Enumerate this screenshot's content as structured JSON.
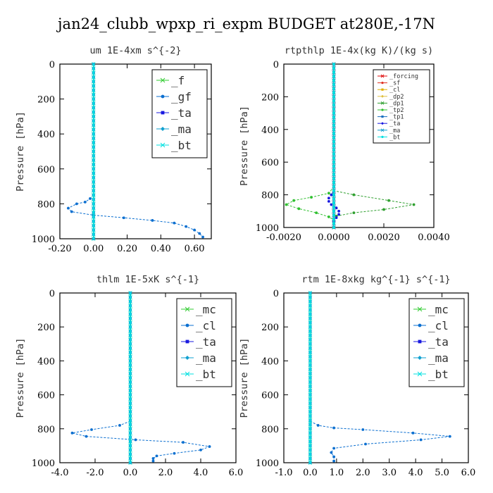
{
  "title": "jan24_clubb_wpxp_ri_expm  BUDGET at280E,-17N",
  "colors": {
    "f": "#33cc33",
    "gf": "#0b6fd0",
    "ta": "#1818e0",
    "ma": "#10a0d0",
    "bt": "#00e0e0",
    "forcing": "#e01010",
    "sf": "#e03020",
    "cl": "#e0b000",
    "dp2": "#e0c040",
    "dp1": "#30a030",
    "tp2": "#30c030",
    "tp1": "#1a70c0",
    "mc": "#33cc33"
  },
  "chart_data": [
    {
      "type": "line",
      "title": "um  1E-4xm s^{-2}",
      "ylabel": "Pressure [hPa]",
      "xlim": [
        -0.2,
        0.7
      ],
      "ylim": [
        1000,
        0
      ],
      "xticks": [
        -0.2,
        0.0,
        0.2,
        0.4,
        0.6
      ],
      "xtick_labels": [
        "-0.20",
        "0.00",
        "0.20",
        "0.40",
        "0.60"
      ],
      "yticks": [
        0,
        200,
        400,
        600,
        800,
        1000
      ],
      "legend_position": "top-right",
      "legend_size": "large",
      "series": [
        {
          "name": "_f",
          "color_key": "f",
          "x": [
            0,
            0,
            0,
            0,
            0,
            0,
            0,
            0,
            0,
            0,
            0
          ],
          "y": [
            0,
            100,
            200,
            300,
            400,
            500,
            600,
            700,
            800,
            900,
            1000
          ]
        },
        {
          "name": "_gf",
          "color_key": "gf",
          "x": [
            0,
            -0.02,
            -0.05,
            -0.1,
            -0.15,
            -0.13,
            0,
            0.18,
            0.35,
            0.48,
            0.55,
            0.6,
            0.63,
            0.65
          ],
          "y": [
            750,
            770,
            790,
            800,
            825,
            845,
            865,
            880,
            895,
            910,
            930,
            950,
            970,
            990
          ]
        },
        {
          "name": "_ta",
          "color_key": "ta",
          "x": [
            0,
            0,
            0,
            0,
            0,
            0,
            0,
            0,
            0,
            0,
            0
          ],
          "y": [
            0,
            100,
            200,
            300,
            400,
            500,
            600,
            700,
            800,
            900,
            1000
          ]
        },
        {
          "name": "_ma",
          "color_key": "ma",
          "x": [
            0,
            0,
            0,
            0,
            0,
            0,
            0,
            0,
            0,
            0,
            0
          ],
          "y": [
            0,
            100,
            200,
            300,
            400,
            500,
            600,
            700,
            800,
            900,
            1000
          ]
        },
        {
          "name": "_bt",
          "color_key": "bt",
          "x": [
            0,
            0,
            0,
            0,
            0,
            0,
            0,
            0,
            0,
            0,
            0
          ],
          "y": [
            0,
            100,
            200,
            300,
            400,
            500,
            600,
            700,
            800,
            900,
            1000
          ]
        }
      ]
    },
    {
      "type": "line",
      "title": "rtpthlp  1E-4x(kg K)/(kg s)",
      "ylabel": "Pressure [hPa]",
      "xlim": [
        -0.002,
        0.004
      ],
      "ylim": [
        1000,
        0
      ],
      "xticks": [
        -0.002,
        0.0,
        0.002,
        0.004
      ],
      "xtick_labels": [
        "-0.0020",
        "0.0000",
        "0.0020",
        "0.0040"
      ],
      "yticks": [
        0,
        200,
        400,
        600,
        800,
        1000
      ],
      "legend_position": "top-right",
      "legend_size": "small",
      "series": [
        {
          "name": "_forcing",
          "color_key": "forcing",
          "x": [
            0,
            0,
            0,
            0,
            0,
            0,
            0,
            0,
            0,
            0,
            0
          ],
          "y": [
            0,
            100,
            200,
            300,
            400,
            500,
            600,
            700,
            800,
            900,
            1000
          ]
        },
        {
          "name": "_sf",
          "color_key": "sf",
          "x": [
            0,
            0,
            0,
            0,
            0,
            0,
            0,
            0,
            0,
            0,
            0
          ],
          "y": [
            0,
            100,
            200,
            300,
            400,
            500,
            600,
            700,
            800,
            900,
            1000
          ]
        },
        {
          "name": "_cl",
          "color_key": "cl",
          "x": [
            0,
            0
          ],
          "y": [
            0,
            1000
          ]
        },
        {
          "name": "_dp2",
          "color_key": "dp2",
          "x": [
            0,
            0
          ],
          "y": [
            0,
            1000
          ]
        },
        {
          "name": "_dp1",
          "color_key": "dp1",
          "x": [
            0,
            0,
            0.0008,
            0.0022,
            0.0032,
            0.002,
            0.0008,
            0.0001,
            0
          ],
          "y": [
            750,
            775,
            800,
            835,
            860,
            890,
            910,
            930,
            950
          ]
        },
        {
          "name": "_tp2",
          "color_key": "tp2",
          "x": [
            0,
            -0.0002,
            -0.0009,
            -0.0016,
            -0.0019,
            -0.0014,
            -0.0007,
            -0.0002,
            0
          ],
          "y": [
            750,
            790,
            815,
            835,
            860,
            885,
            910,
            935,
            955
          ]
        },
        {
          "name": "_tp1",
          "color_key": "tp1",
          "x": [
            0,
            0,
            0
          ],
          "y": [
            0,
            500,
            1000
          ]
        },
        {
          "name": "_ta",
          "color_key": "ta",
          "x": [
            0,
            -0.0001,
            -0.0002,
            -0.0002,
            -0.0001,
            0.0001,
            0.0002,
            0.0002,
            0.0001,
            0
          ],
          "y": [
            780,
            800,
            820,
            840,
            860,
            880,
            900,
            920,
            940,
            960
          ]
        },
        {
          "name": "_ma",
          "color_key": "ma",
          "x": [
            0,
            0
          ],
          "y": [
            0,
            1000
          ]
        },
        {
          "name": "_bt",
          "color_key": "bt",
          "x": [
            0,
            0
          ],
          "y": [
            0,
            1000
          ]
        }
      ]
    },
    {
      "type": "line",
      "title": "thlm  1E-5xK s^{-1}",
      "ylabel": "Pressure [hPa]",
      "xlim": [
        -4.0,
        6.0
      ],
      "ylim": [
        1000,
        0
      ],
      "xticks": [
        -4,
        -2,
        0,
        2,
        4,
        6
      ],
      "xtick_labels": [
        "-4.0",
        "-2.0",
        "0.0",
        "2.0",
        "4.0",
        "6.0"
      ],
      "yticks": [
        0,
        200,
        400,
        600,
        800,
        1000
      ],
      "legend_position": "top-right",
      "legend_size": "large",
      "series": [
        {
          "name": "_mc",
          "color_key": "mc",
          "x": [
            0,
            0,
            0,
            0,
            0,
            0,
            0,
            0,
            0,
            0,
            0
          ],
          "y": [
            0,
            100,
            200,
            300,
            400,
            500,
            600,
            700,
            800,
            900,
            1000
          ]
        },
        {
          "name": "_cl",
          "color_key": "gf",
          "x": [
            0,
            -0.6,
            -2.2,
            -3.3,
            -2.5,
            0.3,
            3.0,
            4.5,
            4.0,
            2.5,
            1.5,
            1.3,
            1.3
          ],
          "y": [
            755,
            780,
            805,
            825,
            845,
            865,
            880,
            905,
            925,
            945,
            960,
            975,
            990
          ]
        },
        {
          "name": "_ta",
          "color_key": "ta",
          "x": [
            0,
            0,
            0,
            0,
            0,
            0,
            0,
            0,
            0,
            0,
            0
          ],
          "y": [
            0,
            100,
            200,
            300,
            400,
            500,
            600,
            700,
            800,
            900,
            1000
          ]
        },
        {
          "name": "_ma",
          "color_key": "ma",
          "x": [
            0,
            0,
            0,
            0,
            0,
            0,
            0,
            0,
            0,
            0,
            0
          ],
          "y": [
            0,
            100,
            200,
            300,
            400,
            500,
            600,
            700,
            800,
            900,
            1000
          ]
        },
        {
          "name": "_bt",
          "color_key": "bt",
          "x": [
            0,
            0,
            0,
            0,
            0,
            0,
            0,
            0,
            0,
            0,
            0
          ],
          "y": [
            0,
            100,
            200,
            300,
            400,
            500,
            600,
            700,
            800,
            900,
            1000
          ]
        }
      ]
    },
    {
      "type": "line",
      "title": "rtm  1E-8xkg kg^{-1} s^{-1}",
      "ylabel": "Pressure [hPa]",
      "xlim": [
        -1.0,
        6.0
      ],
      "ylim": [
        1000,
        0
      ],
      "xticks": [
        -1,
        0,
        1,
        2,
        3,
        4,
        5,
        6
      ],
      "xtick_labels": [
        "-1.0",
        "0.0",
        "1.0",
        "2.0",
        "3.0",
        "4.0",
        "5.0",
        "6.0"
      ],
      "yticks": [
        0,
        200,
        400,
        600,
        800,
        1000
      ],
      "legend_position": "top-right",
      "legend_size": "large",
      "series": [
        {
          "name": "_mc",
          "color_key": "mc",
          "x": [
            0,
            0,
            0,
            0,
            0,
            0,
            0,
            0,
            0,
            0,
            0
          ],
          "y": [
            0,
            100,
            200,
            300,
            400,
            500,
            600,
            700,
            800,
            900,
            1000
          ]
        },
        {
          "name": "_cl",
          "color_key": "gf",
          "x": [
            0,
            0.3,
            0.9,
            2.0,
            3.9,
            5.3,
            4.2,
            2.1,
            0.9,
            0.8,
            0.9,
            0.9
          ],
          "y": [
            755,
            780,
            795,
            805,
            825,
            845,
            865,
            890,
            915,
            940,
            965,
            990
          ]
        },
        {
          "name": "_ta",
          "color_key": "ta",
          "x": [
            0,
            0,
            0,
            0,
            0,
            0,
            0,
            0,
            0,
            0,
            0
          ],
          "y": [
            0,
            100,
            200,
            300,
            400,
            500,
            600,
            700,
            800,
            900,
            1000
          ]
        },
        {
          "name": "_ma",
          "color_key": "ma",
          "x": [
            0,
            0,
            0,
            0,
            0,
            0,
            0,
            0,
            0,
            0,
            0
          ],
          "y": [
            0,
            100,
            200,
            300,
            400,
            500,
            600,
            700,
            800,
            900,
            1000
          ]
        },
        {
          "name": "_bt",
          "color_key": "bt",
          "x": [
            0,
            0,
            0,
            0,
            0,
            0,
            0,
            0,
            0,
            0,
            0
          ],
          "y": [
            0,
            100,
            200,
            300,
            400,
            500,
            600,
            700,
            800,
            900,
            1000
          ]
        }
      ]
    }
  ]
}
